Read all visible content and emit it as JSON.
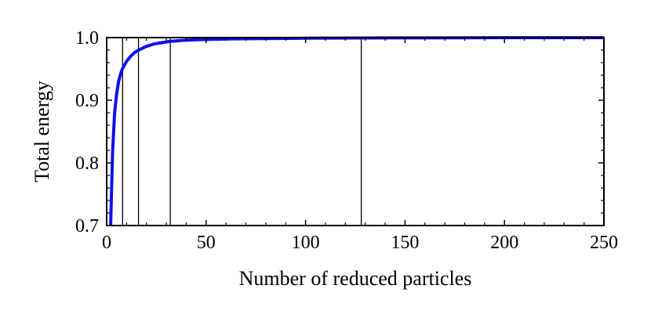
{
  "chart_data": {
    "type": "line",
    "title": "",
    "xlabel": "Number of reduced particles",
    "ylabel": "Total energy",
    "xlim": [
      0,
      250
    ],
    "ylim": [
      0.7,
      1.0
    ],
    "xticks": [
      0,
      50,
      100,
      150,
      200,
      250
    ],
    "yticks": [
      0.7,
      0.8,
      0.9,
      1.0
    ],
    "xtick_labels": [
      "0",
      "50",
      "100",
      "150",
      "200",
      "250"
    ],
    "ytick_labels": [
      "0.7",
      "0.8",
      "0.9",
      "1.0"
    ],
    "grid": false,
    "vertical_lines": [
      8,
      16,
      32,
      128
    ],
    "series": [
      {
        "color": "#1010e6",
        "x": [
          2.0,
          2.5,
          3,
          4,
          5,
          6,
          7,
          8,
          10,
          12,
          14,
          16,
          20,
          24,
          28,
          32,
          40,
          50,
          64,
          80,
          100,
          128,
          160,
          200,
          250
        ],
        "y": [
          0.7,
          0.76,
          0.82,
          0.88,
          0.91,
          0.93,
          0.942,
          0.951,
          0.962,
          0.97,
          0.976,
          0.98,
          0.986,
          0.99,
          0.992,
          0.994,
          0.996,
          0.997,
          0.998,
          0.9985,
          0.999,
          0.9993,
          0.9996,
          0.9998,
          0.9999
        ]
      }
    ]
  }
}
